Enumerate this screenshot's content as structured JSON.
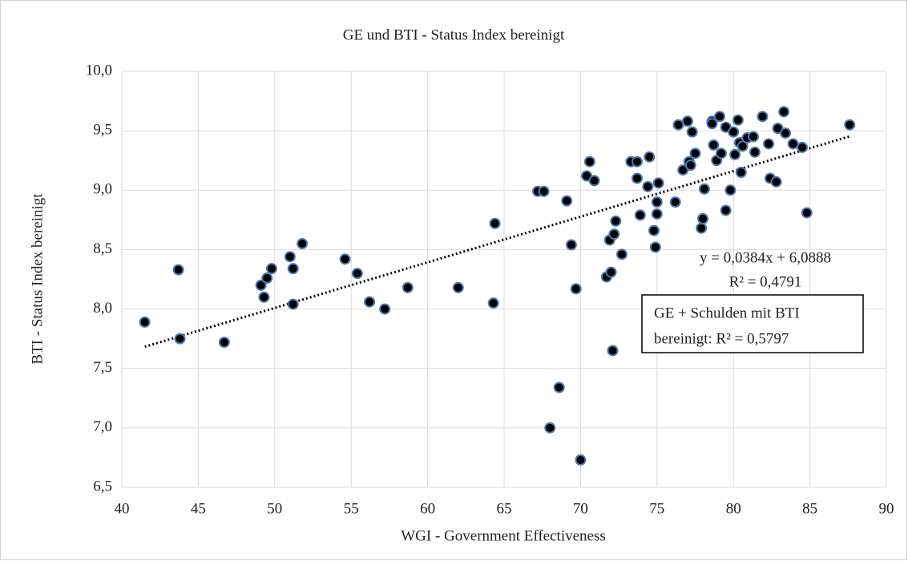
{
  "chart_data": {
    "type": "scatter",
    "title": "GE und BTI - Status Index  bereinigt",
    "xlabel": "WGI - Government Effectiveness",
    "ylabel": "BTI - Status Index  bereinigt",
    "x": [
      41.5,
      43.7,
      43.8,
      46.7,
      49.1,
      49.3,
      49.5,
      49.8,
      51.0,
      51.2,
      51.2,
      51.8,
      54.6,
      55.4,
      56.2,
      57.2,
      58.7,
      62.0,
      64.3,
      64.4,
      67.2,
      67.6,
      69.1,
      69.4,
      69.7,
      68.0,
      68.6,
      70.0,
      70.4,
      70.6,
      70.9,
      71.7,
      71.9,
      72.0,
      72.1,
      72.2,
      72.3,
      72.7,
      73.3,
      73.7,
      73.7,
      73.9,
      74.4,
      74.5,
      74.8,
      74.9,
      75.0,
      75.0,
      75.1,
      76.2,
      76.4,
      76.7,
      77.0,
      77.1,
      77.2,
      77.3,
      77.5,
      77.9,
      78.0,
      78.1,
      78.6,
      78.6,
      78.7,
      78.9,
      79.1,
      79.2,
      79.5,
      79.5,
      79.8,
      80.0,
      80.1,
      80.3,
      80.4,
      80.5,
      80.6,
      80.9,
      81.3,
      81.4,
      81.9,
      82.3,
      82.4,
      82.8,
      82.9,
      83.3,
      83.4,
      83.9,
      84.5,
      84.8,
      87.6
    ],
    "values": [
      7.89,
      8.33,
      7.75,
      7.72,
      8.2,
      8.1,
      8.26,
      8.34,
      8.44,
      8.34,
      8.04,
      8.55,
      8.42,
      8.3,
      8.06,
      8.0,
      8.18,
      8.18,
      8.05,
      8.72,
      8.99,
      8.99,
      8.91,
      8.54,
      8.17,
      7.0,
      7.34,
      6.73,
      9.12,
      9.24,
      9.08,
      8.27,
      8.58,
      8.31,
      7.65,
      8.63,
      8.74,
      8.46,
      9.24,
      9.24,
      9.1,
      8.79,
      9.03,
      9.28,
      8.66,
      8.52,
      8.8,
      8.9,
      9.06,
      8.9,
      9.55,
      9.17,
      9.58,
      9.24,
      9.21,
      9.49,
      9.31,
      8.68,
      8.76,
      9.01,
      9.58,
      9.56,
      9.38,
      9.25,
      9.62,
      9.31,
      9.53,
      8.83,
      9.0,
      9.49,
      9.3,
      9.59,
      9.4,
      9.15,
      9.37,
      9.44,
      9.45,
      9.32,
      9.62,
      9.39,
      9.1,
      9.07,
      9.52,
      9.66,
      9.48,
      9.39,
      9.36,
      8.81,
      9.55
    ],
    "color": "#000000",
    "edge_color": "#4a78b0",
    "xlim": [
      40,
      90
    ],
    "xticks": [
      40,
      45,
      50,
      55,
      60,
      65,
      70,
      75,
      80,
      85,
      90
    ],
    "ylim": [
      6.5,
      10
    ],
    "yticks": [
      {
        "value": 6.5,
        "label": "6,5"
      },
      {
        "value": 7,
        "label": "7,0"
      },
      {
        "value": 7.5,
        "label": "7,5"
      },
      {
        "value": 8,
        "label": "8,0"
      },
      {
        "value": 8.5,
        "label": "8,5"
      },
      {
        "value": 9,
        "label": "9,0"
      },
      {
        "value": 9.5,
        "label": "9,5"
      },
      {
        "value": 10,
        "label": "10,0"
      }
    ],
    "grid": true,
    "trendline": {
      "slope": 0.0384,
      "intercept": 6.0888,
      "equation": "y = 0,0384x + 6,0888",
      "r_squared": 0.4791,
      "r_squared_label": "R² = 0,4791"
    },
    "annotation": [
      "GE + Schulden mit BTI",
      "bereinigt: R² = 0,5797"
    ]
  }
}
